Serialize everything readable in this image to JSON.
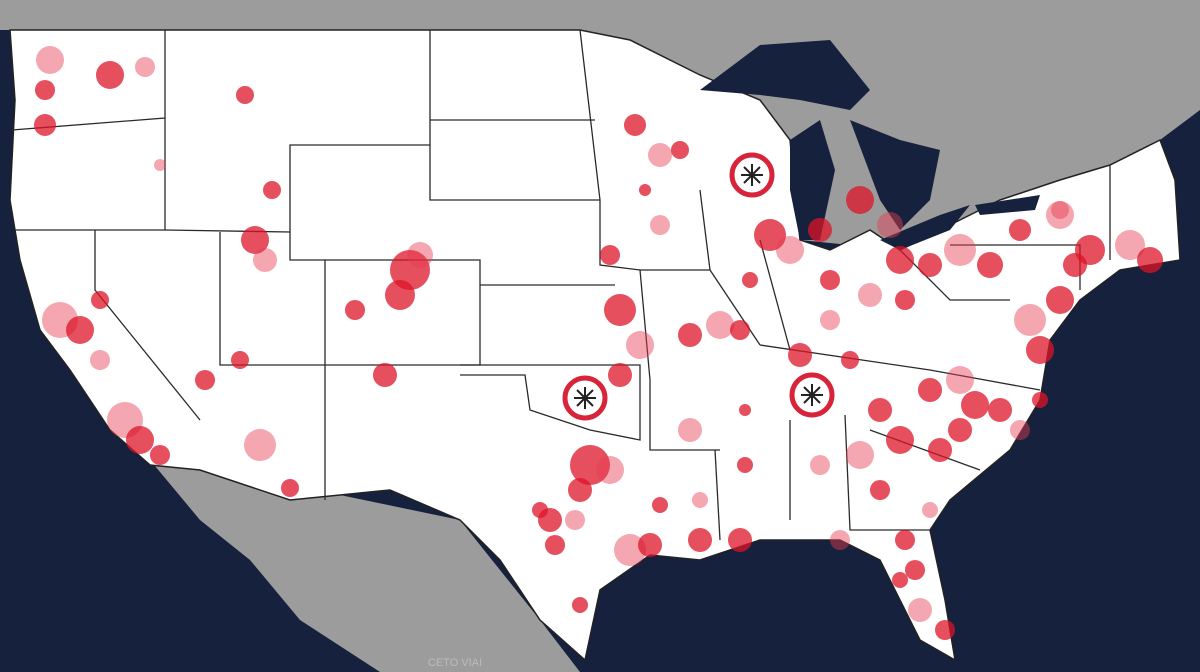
{
  "map": {
    "label": "CETO VIAI"
  }
}
